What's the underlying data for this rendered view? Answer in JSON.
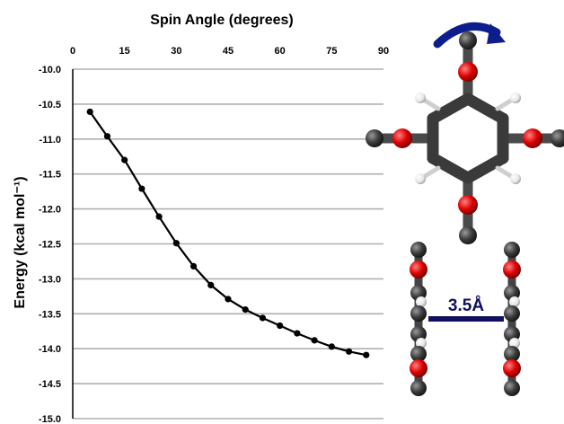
{
  "chart_data": {
    "type": "line",
    "title": "",
    "xlabel": "Spin Angle (degrees)",
    "ylabel": "Energy (kcal mol⁻¹)",
    "x_axis_position": "top",
    "xlim": [
      0,
      90
    ],
    "ylim": [
      -15.0,
      -10.0
    ],
    "x_ticks": [
      "0",
      "15",
      "30",
      "45",
      "60",
      "75",
      "90"
    ],
    "y_ticks": [
      "-10.0",
      "-10.5",
      "-11.0",
      "-11.5",
      "-12.0",
      "-12.5",
      "-13.0",
      "-13.5",
      "-14.0",
      "-14.5",
      "-15.0"
    ],
    "grid": "horizontal",
    "legend": "none",
    "series": [
      {
        "x": [
          5,
          10,
          15,
          20,
          25,
          30,
          35,
          40,
          45,
          50,
          55,
          60,
          65,
          70,
          75,
          80,
          85
        ],
        "y": [
          -10.61,
          -10.96,
          -11.3,
          -11.71,
          -12.11,
          -12.49,
          -12.82,
          -13.09,
          -13.29,
          -13.44,
          -13.56,
          -13.67,
          -13.78,
          -13.88,
          -13.97,
          -14.04,
          -14.09
        ]
      }
    ],
    "colors": {
      "line": "#000000",
      "grid": "#b0b0b0"
    }
  },
  "illustration": {
    "separation_label": "3.5Å",
    "colors": {
      "carbon": "#3a3a3a",
      "oxygen": "#dd0000",
      "hydrogen": "#eeeeee",
      "arrow": "#0d1e8c",
      "separator": "#101060"
    }
  }
}
